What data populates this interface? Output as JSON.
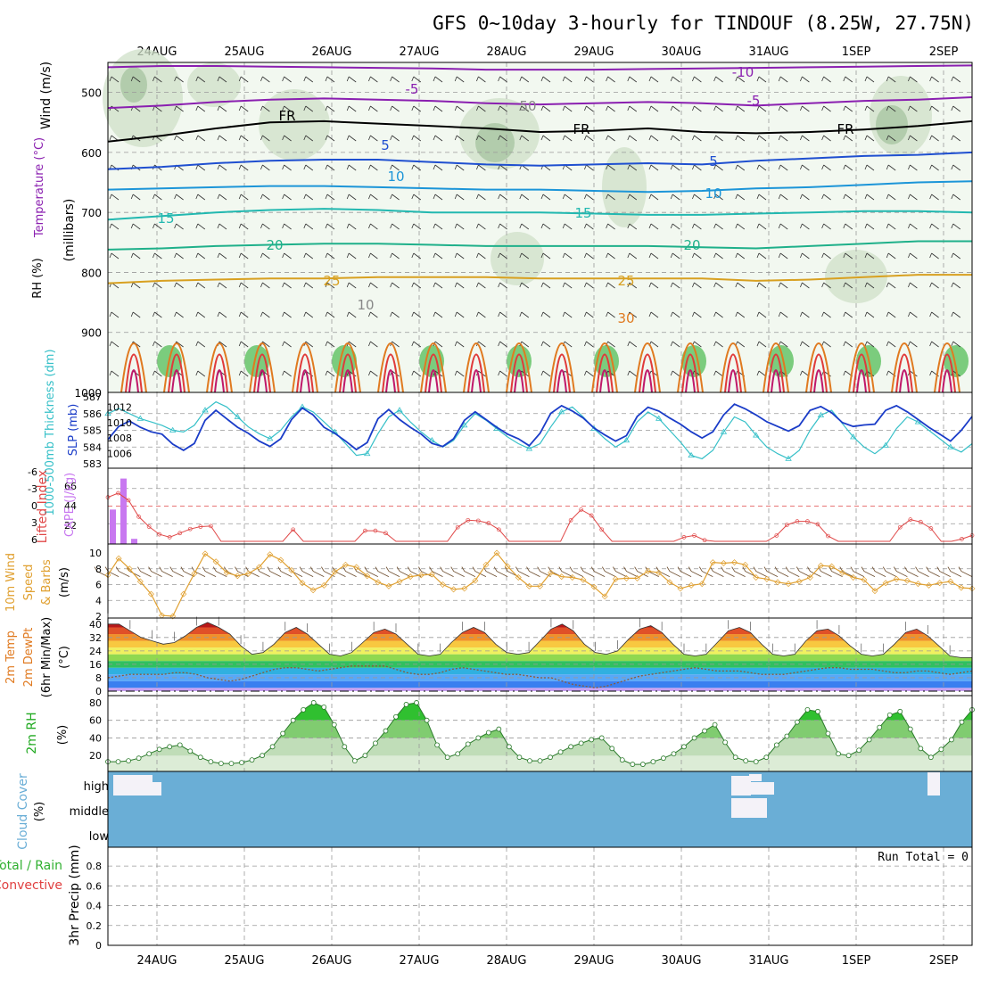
{
  "title": "GFS 0~10day 3-hourly for TINDOUF (8.25W, 27.75N)",
  "date_labels": [
    "24AUG",
    "25AUG",
    "26AUG",
    "27AUG",
    "28AUG",
    "29AUG",
    "30AUG",
    "31AUG",
    "1SEP",
    "2SEP"
  ],
  "colors": {
    "minus10": "#8a1fb0",
    "minus5": "#8a1fb0",
    "fr": "#000000",
    "t5": "#1f4fd0",
    "t10": "#1c95d8",
    "t15": "#22b8b0",
    "t20": "#1fb08a",
    "t25": "#d8a020",
    "t30": "#e07a20",
    "hot1": "#e03a3a",
    "hot2": "#c0186a",
    "slp": "#1a3cc8",
    "thickness": "#36c0c8",
    "cape": "#c878f0",
    "li": "#e04848",
    "wind10": "#e0a030",
    "barb": "#6b4a2a",
    "rh2m": "#22c022",
    "cloud": "#6aaed6",
    "temp_ylabel": "#e07a20",
    "rh_ylabel": "#22aa22"
  },
  "chart_data": [
    {
      "type": "line",
      "panel": "upper-air",
      "ylabels": [
        "Wind (m/s)",
        "Temperature (°C)",
        "RH (%)",
        "(millibars)"
      ],
      "y_ticks": [
        500,
        600,
        700,
        800,
        900,
        1000
      ],
      "ylim": [
        450,
        1000
      ],
      "contour_labels": [
        "-10",
        "-5",
        "FR",
        "5",
        "10",
        "15",
        "20",
        "25",
        "30",
        "10",
        "50"
      ],
      "series": [
        {
          "name": "-10",
          "values": [
            458,
            456,
            456,
            457,
            458,
            459,
            460,
            462,
            462,
            462,
            461,
            460,
            459,
            458,
            457,
            456,
            455
          ]
        },
        {
          "name": "-5",
          "values": [
            526,
            522,
            516,
            512,
            510,
            512,
            514,
            518,
            520,
            518,
            516,
            518,
            522,
            518,
            514,
            512,
            508
          ]
        },
        {
          "name": "FR",
          "values": [
            582,
            572,
            560,
            550,
            548,
            552,
            556,
            560,
            566,
            564,
            560,
            566,
            568,
            566,
            562,
            556,
            548
          ]
        },
        {
          "name": "5",
          "values": [
            628,
            624,
            618,
            614,
            612,
            612,
            616,
            620,
            622,
            620,
            618,
            620,
            614,
            610,
            606,
            604,
            600
          ]
        },
        {
          "name": "10",
          "values": [
            662,
            660,
            658,
            656,
            656,
            658,
            660,
            662,
            662,
            664,
            666,
            664,
            660,
            658,
            654,
            650,
            648
          ]
        },
        {
          "name": "15",
          "values": [
            712,
            706,
            700,
            696,
            694,
            696,
            700,
            700,
            700,
            702,
            704,
            704,
            702,
            700,
            698,
            698,
            700
          ]
        },
        {
          "name": "20",
          "values": [
            762,
            760,
            756,
            754,
            752,
            752,
            754,
            756,
            756,
            756,
            756,
            758,
            760,
            756,
            752,
            748,
            748
          ]
        },
        {
          "name": "25",
          "values": [
            818,
            814,
            812,
            810,
            810,
            808,
            808,
            808,
            810,
            810,
            810,
            810,
            814,
            812,
            808,
            804,
            804
          ]
        }
      ]
    },
    {
      "type": "line",
      "panel": "slp-thickness",
      "ylabels": [
        "1000-500mb Thickness (dm)",
        "SLP (mb)"
      ],
      "left_ticks": [
        583,
        584,
        585,
        586,
        587
      ],
      "right_ticks": [
        1006,
        1008,
        1010,
        1012
      ],
      "series": [
        {
          "name": "SLP",
          "axis": "right",
          "values": [
            1007.8,
            1009.5,
            1010.2,
            1009.4,
            1008.8,
            1008.5,
            1007.2,
            1006.4,
            1007.3,
            1010.3,
            1011.6,
            1010.5,
            1009.4,
            1008.6,
            1007.6,
            1006.9,
            1007.9,
            1010.4,
            1011.9,
            1011.0,
            1009.4,
            1008.6,
            1007.6,
            1006.5,
            1007.4,
            1010.5,
            1011.7,
            1010.4,
            1009.4,
            1008.5,
            1007.3,
            1006.9,
            1007.9,
            1010.3,
            1011.4,
            1010.4,
            1009.4,
            1008.5,
            1007.9,
            1007.0,
            1008.6,
            1011.2,
            1012.2,
            1011.5,
            1010.6,
            1009.3,
            1008.4,
            1007.6,
            1008.3,
            1010.8,
            1012.0,
            1011.5,
            1010.6,
            1009.8,
            1008.8,
            1008.0,
            1008.8,
            1011.0,
            1012.4,
            1011.8,
            1011.0,
            1010.1,
            1009.5,
            1008.9,
            1009.6,
            1011.6,
            1012.1,
            1011.3,
            1010.0,
            1009.5,
            1009.7,
            1009.8,
            1011.6,
            1012.2,
            1011.4,
            1010.4,
            1009.4,
            1008.5,
            1007.6,
            1009.0,
            1010.8
          ]
        },
        {
          "name": "Thickness",
          "axis": "left",
          "values": [
            586.0,
            586.3,
            586.0,
            585.7,
            585.5,
            585.3,
            585.0,
            584.9,
            585.3,
            586.2,
            586.7,
            586.4,
            585.8,
            585.2,
            584.8,
            584.5,
            585.0,
            585.8,
            586.4,
            586.1,
            585.5,
            584.9,
            584.2,
            583.5,
            583.6,
            584.8,
            585.8,
            586.2,
            585.5,
            584.9,
            584.4,
            584.0,
            584.4,
            585.3,
            586.0,
            585.6,
            585.1,
            584.6,
            584.2,
            583.9,
            584.2,
            585.2,
            586.1,
            586.4,
            585.8,
            585.1,
            584.5,
            584.0,
            584.4,
            585.5,
            586.1,
            585.7,
            585.0,
            584.3,
            583.5,
            583.3,
            583.8,
            584.9,
            585.8,
            585.5,
            584.7,
            584.0,
            583.6,
            583.3,
            583.8,
            585.0,
            585.9,
            586.2,
            585.4,
            584.6,
            584.0,
            583.6,
            584.1,
            585.1,
            585.8,
            585.5,
            585.0,
            584.5,
            584.0,
            583.7,
            584.2
          ]
        }
      ]
    },
    {
      "type": "bar",
      "panel": "cape-li",
      "ylabels": [
        "Lifted Index",
        "CAPE (J/kg)"
      ],
      "left_ticks": [
        "-6",
        "-3",
        "0",
        "3",
        "6"
      ],
      "right_ticks": [
        "22",
        "44",
        "66"
      ],
      "cape_bars": [
        40,
        76,
        6
      ],
      "lifted_index": [
        -1.5,
        -2.2,
        -1.0,
        1.8,
        3.5,
        4.8,
        5.3,
        4.6,
        3.9,
        3.5,
        3.4,
        6,
        6,
        6,
        6,
        6,
        6,
        6,
        4.0,
        6,
        6,
        6,
        6,
        6,
        6,
        4.2,
        4.2,
        4.6,
        6,
        6,
        6,
        6,
        6,
        6,
        3.6,
        2.4,
        2.5,
        2.9,
        4.0,
        6,
        6,
        6,
        6,
        6,
        6,
        2.4,
        0.6,
        1.6,
        4.0,
        6,
        6,
        6,
        6,
        6,
        6,
        6,
        5.3,
        5.0,
        5.8,
        6,
        6,
        6,
        6,
        6,
        6,
        5.0,
        3.2,
        2.6,
        2.6,
        3.1,
        5.1,
        6,
        6,
        6,
        6,
        6,
        6,
        3.6,
        2.3,
        2.7,
        3.8,
        6,
        6,
        5.6,
        5.0
      ]
    },
    {
      "type": "line",
      "panel": "wind10m",
      "ylabels": [
        "10m Wind",
        "Speed",
        "& Barbs",
        "(m/s)"
      ],
      "y_ticks": [
        2,
        4,
        6,
        8,
        10
      ],
      "series": [
        {
          "name": "Speed",
          "values": [
            7.2,
            9.3,
            8.0,
            6.4,
            4.8,
            2.1,
            2.0,
            4.8,
            7.4,
            9.9,
            8.9,
            7.5,
            7.1,
            7.4,
            8.2,
            9.8,
            9.1,
            7.8,
            6.2,
            5.3,
            5.9,
            7.6,
            8.5,
            8.2,
            7.1,
            6.3,
            5.8,
            6.4,
            7.0,
            7.2,
            7.3,
            6.0,
            5.4,
            5.5,
            6.5,
            8.5,
            10.0,
            8.3,
            6.9,
            5.8,
            5.8,
            7.5,
            7.0,
            6.9,
            6.6,
            5.7,
            4.5,
            6.7,
            6.8,
            6.8,
            7.7,
            7.5,
            6.3,
            5.5,
            5.9,
            6.1,
            8.8,
            8.7,
            8.8,
            8.5,
            6.9,
            6.7,
            6.3,
            6.1,
            6.4,
            6.9,
            8.4,
            8.3,
            7.5,
            6.9,
            6.6,
            5.2,
            6.2,
            6.7,
            6.5,
            6.1,
            5.9,
            6.2,
            6.4,
            5.6,
            5.5
          ]
        }
      ]
    },
    {
      "type": "area",
      "panel": "temp2m",
      "ylabels": [
        "2m Temp",
        "2m DewPt",
        "(6hr Min/Max)",
        "(°C)"
      ],
      "y_ticks": [
        0,
        8,
        16,
        24,
        32,
        40
      ],
      "series": [
        {
          "name": "2m Temp",
          "values": [
            40,
            40,
            36,
            32,
            30,
            28,
            29,
            33,
            38,
            41,
            38,
            34,
            27,
            22,
            23,
            28,
            35,
            38,
            34,
            28,
            22,
            21,
            23,
            29,
            35,
            37,
            34,
            28,
            22,
            21,
            22,
            29,
            35,
            38,
            35,
            28,
            23,
            22,
            23,
            30,
            37,
            40,
            36,
            28,
            23,
            22,
            24,
            31,
            37,
            39,
            35,
            28,
            22,
            21,
            22,
            29,
            36,
            38,
            35,
            28,
            22,
            21,
            22,
            30,
            36,
            37,
            33,
            27,
            22,
            21,
            22,
            28,
            35,
            37,
            33,
            27,
            21,
            20,
            20
          ]
        },
        {
          "name": "2m DewPt",
          "values": [
            8,
            9,
            10,
            10,
            10,
            10,
            11,
            11,
            10,
            8,
            7,
            6,
            7,
            9,
            11,
            13,
            14,
            14,
            13,
            12,
            13,
            14,
            15,
            15,
            15,
            15,
            13,
            11,
            10,
            10,
            11,
            13,
            14,
            13,
            12,
            11,
            10,
            10,
            9,
            8,
            8,
            6,
            4,
            3,
            2,
            3,
            5,
            7,
            9,
            10,
            11,
            12,
            13,
            14,
            13,
            12,
            12,
            12,
            11,
            10,
            10,
            10,
            11,
            12,
            13,
            14,
            14,
            13,
            13,
            13,
            12,
            11,
            11,
            12,
            12,
            11,
            10,
            11,
            12
          ]
        }
      ]
    },
    {
      "type": "area",
      "panel": "rh2m",
      "ylabels": [
        "2m RH",
        "(%)"
      ],
      "y_ticks": [
        20,
        40,
        60,
        80
      ],
      "series": [
        {
          "name": "2m RH",
          "values": [
            13,
            13,
            14,
            17,
            22,
            27,
            30,
            32,
            25,
            18,
            13,
            11,
            11,
            12,
            15,
            20,
            30,
            45,
            60,
            72,
            80,
            75,
            55,
            30,
            14,
            20,
            34,
            48,
            64,
            78,
            80,
            60,
            32,
            18,
            22,
            33,
            40,
            46,
            50,
            30,
            18,
            14,
            14,
            18,
            24,
            30,
            34,
            38,
            40,
            28,
            15,
            10,
            10,
            13,
            17,
            22,
            30,
            40,
            48,
            55,
            35,
            18,
            14,
            13,
            18,
            32,
            42,
            58,
            72,
            70,
            45,
            22,
            20,
            26,
            38,
            52,
            66,
            70,
            50,
            28,
            18,
            27,
            38,
            58,
            72
          ]
        }
      ]
    },
    {
      "type": "area",
      "panel": "cloud",
      "ylabels": [
        "Cloud Cover",
        "(%)"
      ],
      "y_ticks": [
        "high",
        "middle",
        "low"
      ]
    },
    {
      "type": "bar",
      "panel": "precip",
      "ylabels": [
        "Total / Rain",
        "Convective",
        "3hr Precip (mm)"
      ],
      "y_ticks": [
        "0",
        "0.2",
        "0.4",
        "0.6",
        "0.8"
      ],
      "run_total_label": "Run Total = 0",
      "values": []
    }
  ]
}
